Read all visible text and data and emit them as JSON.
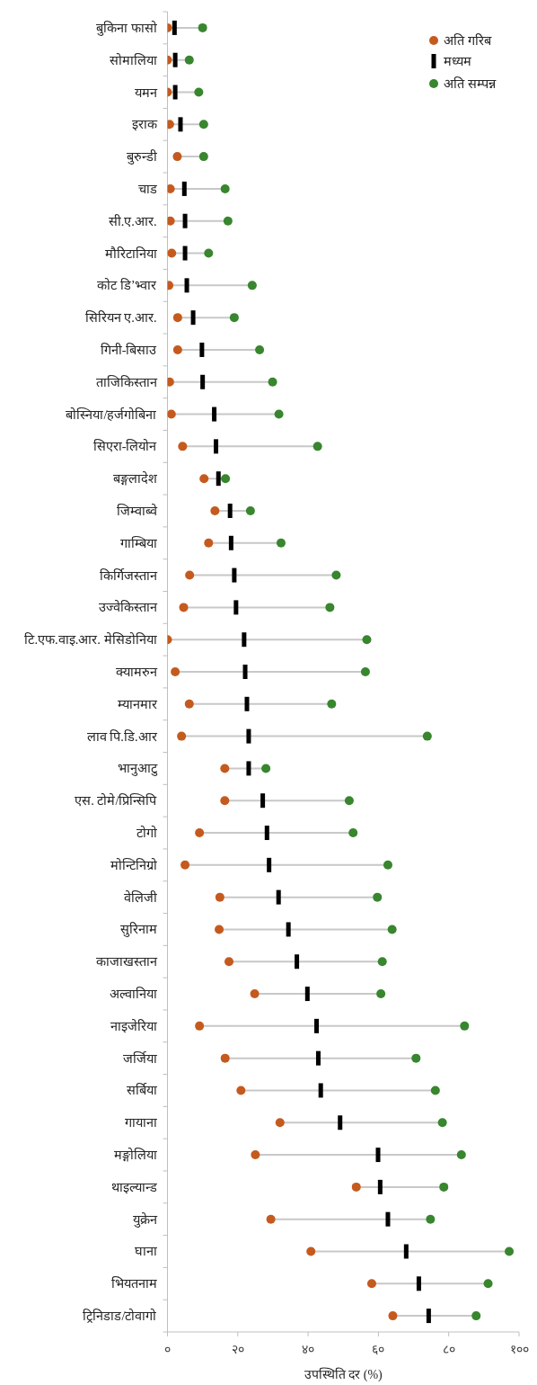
{
  "chart_data": {
    "type": "scatter",
    "orientation": "horizontal",
    "xlabel": "उपस्थिति दर (%)",
    "categories": [
      "बुकिना फासो",
      "सोमालिया",
      "यमन",
      "इराक",
      "बुरुन्डी",
      "चाड",
      "सी.ए.आर.",
      "मौरिटानिया",
      "कोट डि’भ्वार",
      "सिरियन ए.आर.",
      "गिनी-बिसाउ",
      "ताजिकिस्तान",
      "बोस्निया/हर्जगोबिना",
      "सिएरा-लियोन",
      "बङ्गलादेश",
      "जिम्वाब्वे",
      "गाम्बिया",
      "किर्गिजस्तान",
      "उज्वेकिस्तान",
      "टि.एफ.वाइ.आर. मेसिडोनिया",
      "क्यामरुन",
      "म्यानमार",
      "लाव पि.डि.आर",
      "भानुआटु",
      "एस. टोमे/प्रिन्सिपि",
      "टोगो",
      "मोन्टिनिग्रो",
      "वेलिजी",
      "सुरिनाम",
      "काजाखस्तान",
      "अल्वानिया",
      "नाइजेरिया",
      "जर्जिया",
      "सर्बिया",
      "गायाना",
      "मङ्गोलिया",
      "थाइल्यान्ड",
      "युक्रेन",
      "घाना",
      "भियतनाम",
      "ट्रिनिडाड/टोवागो"
    ],
    "series": [
      {
        "name": "अति गरिब",
        "color": "#c55a1e",
        "marker": "circle",
        "values": [
          0,
          0,
          0,
          0.6,
          2.8,
          0.8,
          0.8,
          1.2,
          0.4,
          2.9,
          2.9,
          0.6,
          1.1,
          4.3,
          10.4,
          13.5,
          11.7,
          6.3,
          4.6,
          0,
          2.2,
          6.2,
          4.0,
          16.3,
          16.3,
          9.1,
          5.0,
          14.9,
          14.7,
          17.5,
          24.8,
          9.1,
          16.4,
          20.9,
          32.0,
          25.0,
          53.7,
          29.4,
          40.8,
          58.1,
          64.1
        ]
      },
      {
        "name": "मध्यम",
        "color": "#000000",
        "marker": "square",
        "values": [
          2.0,
          2.2,
          2.2,
          3.7,
          null,
          4.8,
          5.0,
          5.0,
          5.5,
          7.3,
          9.8,
          10.0,
          13.3,
          13.8,
          14.5,
          17.8,
          18.1,
          19.0,
          19.5,
          21.8,
          22.1,
          22.6,
          23.1,
          23.1,
          27.1,
          28.3,
          28.9,
          31.6,
          34.4,
          36.8,
          39.8,
          42.4,
          42.9,
          43.6,
          49.1,
          59.9,
          60.5,
          62.7,
          67.9,
          71.5,
          74.3
        ]
      },
      {
        "name": "अति सम्पन्न",
        "color": "#38862e",
        "marker": "circle",
        "values": [
          10.0,
          6.2,
          8.9,
          10.3,
          10.3,
          16.4,
          17.2,
          11.7,
          24.1,
          19.0,
          26.2,
          29.9,
          31.7,
          42.7,
          16.5,
          23.6,
          32.3,
          48.0,
          46.2,
          56.7,
          56.3,
          46.7,
          73.9,
          28.0,
          51.7,
          52.8,
          62.7,
          59.7,
          63.9,
          61.1,
          60.7,
          84.5,
          70.7,
          76.2,
          78.2,
          83.6,
          78.6,
          74.8,
          97.2,
          91.2,
          87.8
        ]
      }
    ],
    "xlim": [
      0,
      100
    ],
    "xticks": [
      {
        "value": 0,
        "label": "०"
      },
      {
        "value": 20,
        "label": "२०"
      },
      {
        "value": 40,
        "label": "४०"
      },
      {
        "value": 60,
        "label": "६०"
      },
      {
        "value": 80,
        "label": "८०"
      },
      {
        "value": 100,
        "label": "१००"
      }
    ],
    "grid": false,
    "legend": "top right"
  }
}
